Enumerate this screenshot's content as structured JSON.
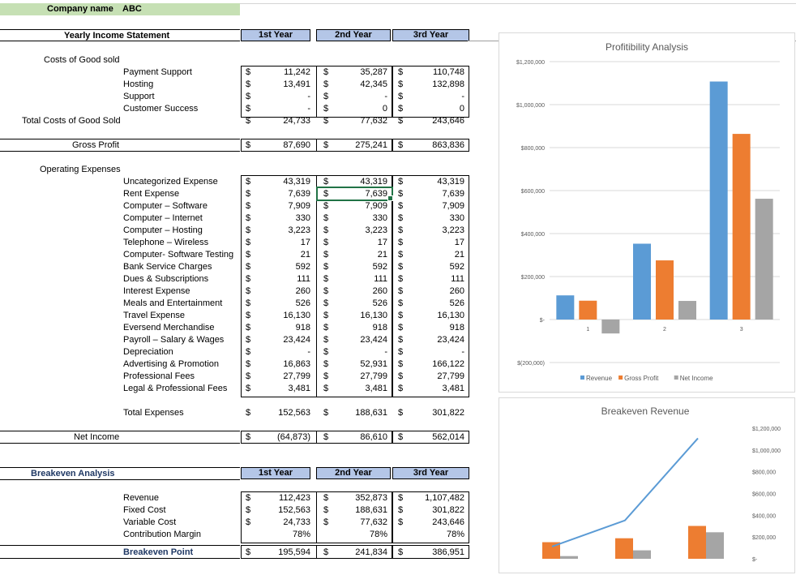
{
  "company": {
    "label": "Company name",
    "value": "ABC"
  },
  "income": {
    "title": "Yearly Income Statement",
    "years": [
      "1st Year",
      "2nd Year",
      "3rd Year"
    ],
    "cogs_label": "Costs of Good sold",
    "cogs": [
      {
        "label": "Payment Support",
        "v": [
          "11,242",
          "35,287",
          "110,748"
        ]
      },
      {
        "label": "Hosting",
        "v": [
          "13,491",
          "42,345",
          "132,898"
        ]
      },
      {
        "label": "Support",
        "v": [
          "-",
          "-",
          "-"
        ]
      },
      {
        "label": "Customer Success",
        "v": [
          "-",
          "0",
          "0"
        ],
        "nodollar3": true
      }
    ],
    "total_cogs": {
      "label": "Total Costs of Good Sold",
      "v": [
        "24,733",
        "77,632",
        "243,646"
      ]
    },
    "gross_profit": {
      "label": "Gross Profit",
      "v": [
        "87,690",
        "275,241",
        "863,836"
      ]
    },
    "opex_label": "Operating Expenses",
    "opex": [
      {
        "label": "Uncategorized Expense",
        "v": [
          "43,319",
          "43,319",
          "43,319"
        ]
      },
      {
        "label": "Rent Expense",
        "v": [
          "7,639",
          "7,639",
          "7,639"
        ]
      },
      {
        "label": "Computer – Software",
        "v": [
          "7,909",
          "7,909",
          "7,909"
        ]
      },
      {
        "label": "Computer – Internet",
        "v": [
          "330",
          "330",
          "330"
        ]
      },
      {
        "label": "Computer – Hosting",
        "v": [
          "3,223",
          "3,223",
          "3,223"
        ]
      },
      {
        "label": "Telephone – Wireless",
        "v": [
          "17",
          "17",
          "17"
        ]
      },
      {
        "label": "Computer- Software Testing",
        "v": [
          "21",
          "21",
          "21"
        ]
      },
      {
        "label": "Bank Service Charges",
        "v": [
          "592",
          "592",
          "592"
        ]
      },
      {
        "label": "Dues & Subscriptions",
        "v": [
          "111",
          "111",
          "111"
        ]
      },
      {
        "label": "Interest Expense",
        "v": [
          "260",
          "260",
          "260"
        ]
      },
      {
        "label": "Meals and Entertainment",
        "v": [
          "526",
          "526",
          "526"
        ]
      },
      {
        "label": "Travel Expense",
        "v": [
          "16,130",
          "16,130",
          "16,130"
        ]
      },
      {
        "label": "Eversend Merchandise",
        "v": [
          "918",
          "918",
          "918"
        ]
      },
      {
        "label": "Payroll – Salary & Wages",
        "v": [
          "23,424",
          "23,424",
          "23,424"
        ]
      },
      {
        "label": "Depreciation",
        "v": [
          "-",
          "-",
          "-"
        ]
      },
      {
        "label": "Advertising & Promotion",
        "v": [
          "16,863",
          "52,931",
          "166,122"
        ]
      },
      {
        "label": "Professional Fees",
        "v": [
          "27,799",
          "27,799",
          "27,799"
        ]
      },
      {
        "label": "Legal & Professional Fees",
        "v": [
          "3,481",
          "3,481",
          "3,481"
        ]
      }
    ],
    "total_expenses": {
      "label": "Total Expenses",
      "v": [
        "152,563",
        "188,631",
        "301,822"
      ]
    },
    "net_income": {
      "label": "Net Income",
      "v": [
        "(64,873)",
        "86,610",
        "562,014"
      ]
    }
  },
  "breakeven": {
    "title": "Breakeven Analysis",
    "years": [
      "1st Year",
      "2nd Year",
      "3rd Year"
    ],
    "rows": [
      {
        "label": "Revenue",
        "v": [
          "112,423",
          "352,873",
          "1,107,482"
        ]
      },
      {
        "label": "Fixed Cost",
        "v": [
          "152,563",
          "188,631",
          "301,822"
        ]
      },
      {
        "label": "Variable Cost",
        "v": [
          "24,733",
          "77,632",
          "243,646"
        ]
      },
      {
        "label": "Contribution Margin",
        "v": [
          "78%",
          "78%",
          "78%"
        ],
        "nodollar": true
      }
    ],
    "point": {
      "label": "Breakeven Point",
      "v": [
        "195,594",
        "241,834",
        "386,951"
      ]
    }
  },
  "currency_symbol": "$",
  "chart_data": [
    {
      "type": "bar",
      "title": "Profitibility Analysis",
      "categories": [
        "1",
        "2",
        "3"
      ],
      "series": [
        {
          "name": "Revenue",
          "color": "#5b9bd5",
          "values": [
            112423,
            352873,
            1107482
          ]
        },
        {
          "name": "Gross Profit",
          "color": "#ed7d31",
          "values": [
            87690,
            275241,
            863836
          ]
        },
        {
          "name": "Net Income",
          "color": "#a5a5a5",
          "values": [
            -64873,
            86610,
            562014
          ]
        }
      ],
      "yticks": [
        "$1,200,000",
        "$1,000,000",
        "$800,000",
        "$600,000",
        "$400,000",
        "$200,000",
        "$-",
        "$(200,000)"
      ],
      "ylim": [
        -200000,
        1200000
      ],
      "legend": "bottom"
    },
    {
      "type": "bar+line",
      "title": "Breakeven Revenue",
      "line": {
        "name": "Revenue",
        "color": "#5b9bd5",
        "values": [
          112423,
          352873,
          1107482
        ]
      },
      "series": [
        {
          "name": "Fixed Cost",
          "color": "#ed7d31",
          "values": [
            152563,
            188631,
            301822
          ]
        },
        {
          "name": "Variable Cost",
          "color": "#a5a5a5",
          "values": [
            24733,
            77632,
            243646
          ]
        }
      ],
      "yticks": [
        "$1,200,000",
        "$1,000,000",
        "$800,000",
        "$600,000",
        "$400,000",
        "$200,000",
        "$-"
      ],
      "ylim": [
        0,
        1200000
      ]
    }
  ]
}
